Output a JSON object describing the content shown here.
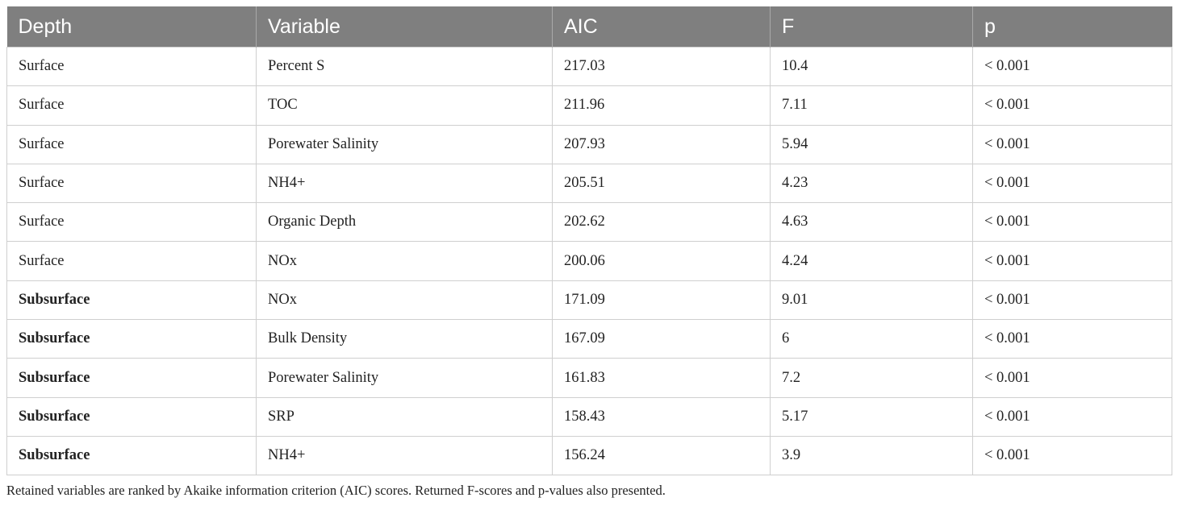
{
  "table": {
    "headers": [
      "Depth",
      "Variable",
      "AIC",
      "F",
      "p"
    ],
    "rows": [
      {
        "depth": "Surface",
        "bold": false,
        "variable": "Percent S",
        "aic": "217.03",
        "f": "10.4",
        "p": "< 0.001"
      },
      {
        "depth": "Surface",
        "bold": false,
        "variable": "TOC",
        "aic": "211.96",
        "f": "7.11",
        "p": "< 0.001"
      },
      {
        "depth": "Surface",
        "bold": false,
        "variable": "Porewater Salinity",
        "aic": "207.93",
        "f": "5.94",
        "p": "< 0.001"
      },
      {
        "depth": "Surface",
        "bold": false,
        "variable": "NH4+",
        "aic": "205.51",
        "f": "4.23",
        "p": "< 0.001"
      },
      {
        "depth": "Surface",
        "bold": false,
        "variable": "Organic Depth",
        "aic": "202.62",
        "f": "4.63",
        "p": "< 0.001"
      },
      {
        "depth": "Surface",
        "bold": false,
        "variable": "NOx",
        "aic": "200.06",
        "f": "4.24",
        "p": "< 0.001"
      },
      {
        "depth": "Subsurface",
        "bold": true,
        "variable": "NOx",
        "aic": "171.09",
        "f": "9.01",
        "p": "< 0.001"
      },
      {
        "depth": "Subsurface",
        "bold": true,
        "variable": "Bulk Density",
        "aic": "167.09",
        "f": "6",
        "p": "< 0.001"
      },
      {
        "depth": "Subsurface",
        "bold": true,
        "variable": "Porewater Salinity",
        "aic": "161.83",
        "f": "7.2",
        "p": "< 0.001"
      },
      {
        "depth": "Subsurface",
        "bold": true,
        "variable": "SRP",
        "aic": "158.43",
        "f": "5.17",
        "p": "< 0.001"
      },
      {
        "depth": "Subsurface",
        "bold": true,
        "variable": "NH4+",
        "aic": "156.24",
        "f": "3.9",
        "p": "< 0.001"
      }
    ]
  },
  "caption": "Retained variables are ranked by Akaike information criterion (AIC) scores. Returned F-scores and p-values also presented.",
  "colors": {
    "header_bg": "#7f7f7f",
    "header_text": "#ffffff",
    "border": "#cfcfcf"
  }
}
